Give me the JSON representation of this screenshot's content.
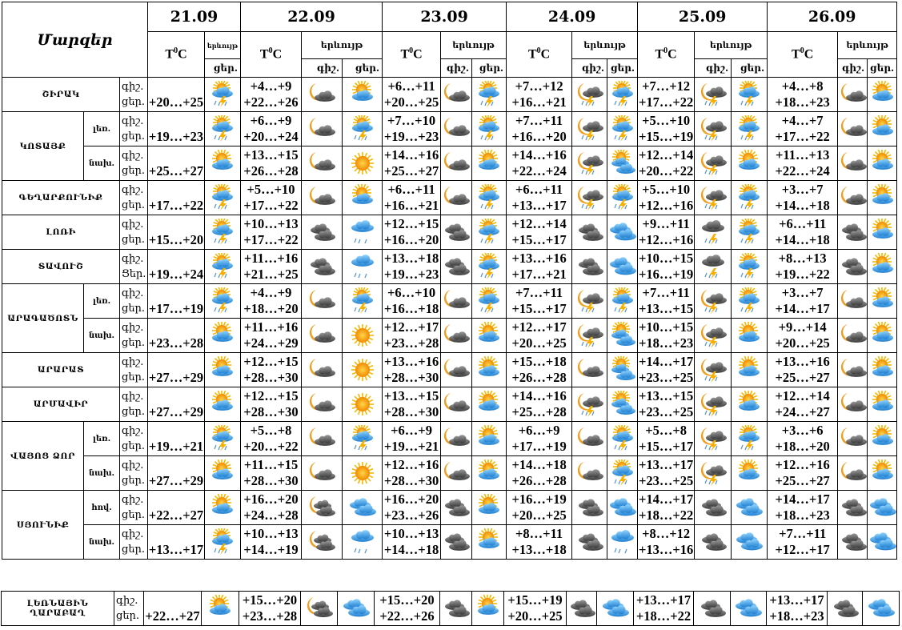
{
  "header": {
    "regions_label": "Մարզեր",
    "temp_symbol": "T",
    "temp_degree": "0",
    "temp_unit": "C",
    "phenomenon_label": "երևույթ",
    "night_label": "գիշ.",
    "day_label": "ցեր.",
    "dates": [
      "21.09",
      "22.09",
      "23.09",
      "24.09",
      "25.09",
      "26.09"
    ]
  },
  "regions": [
    {
      "name": "ՇԻՐԱԿ",
      "zones": [
        {
          "zone": "",
          "night_label": "գիշ.",
          "day_label": "ցեր.",
          "first": {
            "day": "+20…+25",
            "icon_day": "sun-storm"
          },
          "forecast": [
            {
              "night": "+4…+9",
              "day": "+22…+26",
              "icon_night": "moon-cloud",
              "icon_day": "sun-cloud"
            },
            {
              "night": "+6…+11",
              "day": "+20…+25",
              "icon_night": "moon-cloud",
              "icon_day": "sun-storm"
            },
            {
              "night": "+7…+12",
              "day": "+16…+21",
              "icon_night": "moon-storm",
              "icon_day": "sun-storm"
            },
            {
              "night": "+7…+12",
              "day": "+17…+22",
              "icon_night": "moon-storm",
              "icon_day": "sun-storm"
            },
            {
              "night": "+4…+8",
              "day": "+18…+23",
              "icon_night": "moon-cloud",
              "icon_day": "sun-cloud"
            }
          ]
        }
      ]
    },
    {
      "name": "ԿՈՏԱՅՔ",
      "zones": [
        {
          "zone": "լեռ.",
          "night_label": "գիշ.",
          "day_label": "ցեր.",
          "first": {
            "day": "+19…+23",
            "icon_day": "sun-storm"
          },
          "forecast": [
            {
              "night": "+6…+9",
              "day": "+20…+24",
              "icon_night": "moon-cloud",
              "icon_day": "sun-storm"
            },
            {
              "night": "+7…+10",
              "day": "+19…+23",
              "icon_night": "moon-cloud",
              "icon_day": "sun-storm"
            },
            {
              "night": "+7…+11",
              "day": "+16…+20",
              "icon_night": "moon-storm",
              "icon_day": "sun-storm"
            },
            {
              "night": "+5…+10",
              "day": "+15…+19",
              "icon_night": "moon-storm",
              "icon_day": "sun-storm"
            },
            {
              "night": "+4…+7",
              "day": "+17…+22",
              "icon_night": "moon-cloud",
              "icon_day": "sun-cloud"
            }
          ]
        },
        {
          "zone": "նախ.",
          "night_label": "գիշ.",
          "day_label": "ցեր.",
          "first": {
            "day": "+25…+27",
            "icon_day": "sun-cloud"
          },
          "forecast": [
            {
              "night": "+13…+15",
              "day": "+26…+28",
              "icon_night": "moon-cloud",
              "icon_day": "sun"
            },
            {
              "night": "+14…+16",
              "day": "+25…+27",
              "icon_night": "moon-cloud",
              "icon_day": "sun-cloud"
            },
            {
              "night": "+14…+16",
              "day": "+22…+24",
              "icon_night": "moon-storm",
              "icon_day": "sun-clouds"
            },
            {
              "night": "+12…+14",
              "day": "+20…+22",
              "icon_night": "moon-storm",
              "icon_day": "sun-cloud"
            },
            {
              "night": "+11…+13",
              "day": "+22…+24",
              "icon_night": "moon-cloud",
              "icon_day": "sun-cloud"
            }
          ]
        }
      ]
    },
    {
      "name": "ԳԵՂԱՐՔՈՒՆԻՔ",
      "zones": [
        {
          "zone": "",
          "night_label": "գիշ.",
          "day_label": "ցեր.",
          "first": {
            "day": "+17…+22",
            "icon_day": "sun-storm"
          },
          "forecast": [
            {
              "night": "+5…+10",
              "day": "+17…+22",
              "icon_night": "moon-cloud",
              "icon_day": "sun-cloud"
            },
            {
              "night": "+6…+11",
              "day": "+16…+21",
              "icon_night": "moon-cloud",
              "icon_day": "sun-storm"
            },
            {
              "night": "+6…+11",
              "day": "+13…+17",
              "icon_night": "moon-storm",
              "icon_day": "sun-storm"
            },
            {
              "night": "+5…+10",
              "day": "+12…+16",
              "icon_night": "moon-storm",
              "icon_day": "sun-storm"
            },
            {
              "night": "+3…+7",
              "day": "+14…+18",
              "icon_night": "moon-cloud",
              "icon_day": "sun-cloud"
            }
          ]
        }
      ]
    },
    {
      "name": "ԼՈՌԻ",
      "zones": [
        {
          "zone": "",
          "night_label": "գիշ.",
          "day_label": "ցեր.",
          "first": {
            "day": "+15…+20",
            "icon_day": "sun-storm"
          },
          "forecast": [
            {
              "night": "+10…+13",
              "day": "+17…+22",
              "icon_night": "clouds-dark",
              "icon_day": "rain"
            },
            {
              "night": "+12…+15",
              "day": "+16…+20",
              "icon_night": "clouds-dark",
              "icon_day": "sun-storm"
            },
            {
              "night": "+12…+14",
              "day": "+15…+17",
              "icon_night": "clouds-dark",
              "icon_day": "clouds-blue"
            },
            {
              "night": "+9…+11",
              "day": "+12…+16",
              "icon_night": "storm-dark",
              "icon_day": "sun-storm"
            },
            {
              "night": "+6…+11",
              "day": "+14…+18",
              "icon_night": "clouds-dark",
              "icon_day": "sun-cloud"
            }
          ]
        }
      ]
    },
    {
      "name": "ՏԱՎՈՒՇ",
      "zones": [
        {
          "zone": "",
          "night_label": "գիշ.",
          "day_label": "Ցեր.",
          "first": {
            "day": "+19…+24",
            "icon_day": "sun-storm"
          },
          "forecast": [
            {
              "night": "+11…+16",
              "day": "+21…+25",
              "icon_night": "clouds-dark",
              "icon_day": "rain"
            },
            {
              "night": "+13…+18",
              "day": "+19…+23",
              "icon_night": "clouds-dark",
              "icon_day": "sun-storm"
            },
            {
              "night": "+13…+16",
              "day": "+17…+21",
              "icon_night": "clouds-dark",
              "icon_day": "clouds-blue"
            },
            {
              "night": "+10…+15",
              "day": "+16…+19",
              "icon_night": "storm-dark",
              "icon_day": "sun-storm"
            },
            {
              "night": "+8…+13",
              "day": "+19…+22",
              "icon_night": "clouds-dark",
              "icon_day": "sun-cloud"
            }
          ]
        }
      ]
    },
    {
      "name": "ԱՐԱԳԱԾՈՏՆ",
      "zones": [
        {
          "zone": "լեռ.",
          "night_label": "գիշ.",
          "day_label": "ցեր.",
          "first": {
            "day": "+17…+19",
            "icon_day": "sun-storm"
          },
          "forecast": [
            {
              "night": "+4…+9",
              "day": "+18…+20",
              "icon_night": "moon-cloud",
              "icon_day": "sun-storm"
            },
            {
              "night": "+6…+10",
              "day": "+16…+18",
              "icon_night": "moon-cloud",
              "icon_day": "sun-storm"
            },
            {
              "night": "+7…+11",
              "day": "+15…+17",
              "icon_night": "moon-storm",
              "icon_day": "sun-storm"
            },
            {
              "night": "+7…+11",
              "day": "+13…+15",
              "icon_night": "moon-storm",
              "icon_day": "sun-storm"
            },
            {
              "night": "+3…+7",
              "day": "+14…+17",
              "icon_night": "moon-cloud",
              "icon_day": "sun-cloud"
            }
          ]
        },
        {
          "zone": "նախ.",
          "night_label": "գիշ.",
          "day_label": "ցեր.",
          "first": {
            "day": "+23…+28",
            "icon_day": "sun-cloud"
          },
          "forecast": [
            {
              "night": "+11…+16",
              "day": "+24…+29",
              "icon_night": "moon-cloud",
              "icon_day": "sun"
            },
            {
              "night": "+12…+17",
              "day": "+23…+28",
              "icon_night": "moon-cloud",
              "icon_day": "sun-cloud"
            },
            {
              "night": "+12…+17",
              "day": "+20…+25",
              "icon_night": "moon-storm",
              "icon_day": "sun-clouds"
            },
            {
              "night": "+10…+15",
              "day": "+18…+23",
              "icon_night": "moon-storm",
              "icon_day": "sun-cloud"
            },
            {
              "night": "+9…+14",
              "day": "+20…+25",
              "icon_night": "moon-cloud",
              "icon_day": "sun-cloud"
            }
          ]
        }
      ]
    },
    {
      "name": "ԱՐԱՐԱՏ",
      "zones": [
        {
          "zone": "",
          "night_label": "գիշ.",
          "day_label": "ցեր.",
          "first": {
            "day": "+27…+29",
            "icon_day": "sun-cloud"
          },
          "forecast": [
            {
              "night": "+12…+15",
              "day": "+28…+30",
              "icon_night": "moon-cloud",
              "icon_day": "sun"
            },
            {
              "night": "+13…+16",
              "day": "+28…+30",
              "icon_night": "moon-cloud",
              "icon_day": "sun-cloud"
            },
            {
              "night": "+15…+18",
              "day": "+26…+28",
              "icon_night": "moon-cloud",
              "icon_day": "sun-clouds"
            },
            {
              "night": "+14…+17",
              "day": "+23…+25",
              "icon_night": "moon-storm",
              "icon_day": "sun-cloud"
            },
            {
              "night": "+13…+16",
              "day": "+25…+27",
              "icon_night": "moon-cloud",
              "icon_day": "sun-cloud"
            }
          ]
        }
      ]
    },
    {
      "name": "ԱՐՄԱՎԻՐ",
      "zones": [
        {
          "zone": "",
          "night_label": "գիշ.",
          "day_label": "ցեր.",
          "first": {
            "day": "+27…+29",
            "icon_day": "sun-cloud"
          },
          "forecast": [
            {
              "night": "+12…+15",
              "day": "+28…+30",
              "icon_night": "moon-cloud",
              "icon_day": "sun"
            },
            {
              "night": "+13…+15",
              "day": "+28…+30",
              "icon_night": "moon-cloud",
              "icon_day": "sun-cloud"
            },
            {
              "night": "+14…+16",
              "day": "+25…+28",
              "icon_night": "moon-storm",
              "icon_day": "sun-clouds"
            },
            {
              "night": "+13…+15",
              "day": "+23…+25",
              "icon_night": "moon-storm",
              "icon_day": "sun-cloud"
            },
            {
              "night": "+12…+14",
              "day": "+24…+27",
              "icon_night": "moon-cloud",
              "icon_day": "sun-cloud"
            }
          ]
        }
      ]
    },
    {
      "name": "ՎԱՅՈՑ ՁՈՐ",
      "zones": [
        {
          "zone": "լեռ.",
          "night_label": "գիշ.",
          "day_label": "ցեր.",
          "first": {
            "day": "+19…+21",
            "icon_day": "sun-storm"
          },
          "forecast": [
            {
              "night": "+5…+8",
              "day": "+20…+22",
              "icon_night": "moon-cloud",
              "icon_day": "sun-storm"
            },
            {
              "night": "+6…+9",
              "day": "+19…+21",
              "icon_night": "moon-cloud",
              "icon_day": "sun-cloud"
            },
            {
              "night": "+6…+9",
              "day": "+17…+19",
              "icon_night": "moon-cloud",
              "icon_day": "sun-storm"
            },
            {
              "night": "+5…+8",
              "day": "+15…+17",
              "icon_night": "moon-storm",
              "icon_day": "sun-storm"
            },
            {
              "night": "+3…+6",
              "day": "+18…+20",
              "icon_night": "moon-cloud",
              "icon_day": "sun-cloud"
            }
          ]
        },
        {
          "zone": "նախ.",
          "night_label": "գիշ.",
          "day_label": "ցեր.",
          "first": {
            "day": "+27…+29",
            "icon_day": "sun-cloud"
          },
          "forecast": [
            {
              "night": "+11…+15",
              "day": "+28…+30",
              "icon_night": "moon-cloud",
              "icon_day": "sun"
            },
            {
              "night": "+12…+16",
              "day": "+28…+30",
              "icon_night": "moon-cloud",
              "icon_day": "sun-cloud"
            },
            {
              "night": "+14…+18",
              "day": "+26…+28",
              "icon_night": "moon-cloud",
              "icon_day": "sun-storm"
            },
            {
              "night": "+13…+17",
              "day": "+23…+25",
              "icon_night": "moon-storm",
              "icon_day": "sun-cloud"
            },
            {
              "night": "+12…+16",
              "day": "+25…+27",
              "icon_night": "moon-cloud",
              "icon_day": "sun-cloud"
            }
          ]
        }
      ]
    },
    {
      "name": "ՍՅՈՒՆԻՔ",
      "zones": [
        {
          "zone": "հով.",
          "night_label": "գիշ.",
          "day_label": "ցեր.",
          "first": {
            "day": "+22…+27",
            "icon_day": "sun-cloud"
          },
          "forecast": [
            {
              "night": "+16…+20",
              "day": "+24…+28",
              "icon_night": "moon-clouds",
              "icon_day": "clouds-blue"
            },
            {
              "night": "+16…+20",
              "day": "+23…+26",
              "icon_night": "clouds-dark",
              "icon_day": "sun-cloud"
            },
            {
              "night": "+16…+19",
              "day": "+20…+25",
              "icon_night": "clouds-dark",
              "icon_day": "clouds-blue"
            },
            {
              "night": "+14…+17",
              "day": "+18…+22",
              "icon_night": "clouds-dark",
              "icon_day": "clouds-blue"
            },
            {
              "night": "+14…+17",
              "day": "+18…+23",
              "icon_night": "clouds-dark",
              "icon_day": "clouds-blue"
            }
          ]
        },
        {
          "zone": "նախ.",
          "night_label": "գիշ.",
          "day_label": "ցեր.",
          "first": {
            "day": "+13…+17",
            "icon_day": "sun-storm"
          },
          "forecast": [
            {
              "night": "+10…+13",
              "day": "+14…+19",
              "icon_night": "moon-clouds",
              "icon_day": "rain"
            },
            {
              "night": "+10…+13",
              "day": "+14…+18",
              "icon_night": "clouds-dark",
              "icon_day": "sun-cloud"
            },
            {
              "night": "+8…+11",
              "day": "+13…+18",
              "icon_night": "clouds-dark",
              "icon_day": "rain"
            },
            {
              "night": "+8…+12",
              "day": "+13…+16",
              "icon_night": "clouds-dark",
              "icon_day": "clouds-blue"
            },
            {
              "night": "+7…+11",
              "day": "+12…+17",
              "icon_night": "clouds-dark",
              "icon_day": "clouds-blue"
            }
          ]
        }
      ]
    }
  ],
  "karabakh": {
    "name": "ԼԵՌՆԱՅԻՆ ՂԱՐԱԲԱՂ",
    "night_label": "գիշ.",
    "day_label": "ցեր.",
    "first": {
      "day": "+22…+27",
      "icon_day": "sun-cloud"
    },
    "forecast": [
      {
        "night": "+15…+20",
        "day": "+23…+28",
        "icon_night": "moon-clouds",
        "icon_day": "clouds-blue"
      },
      {
        "night": "+15…+20",
        "day": "+22…+26",
        "icon_night": "clouds-dark",
        "icon_day": "sun-cloud"
      },
      {
        "night": "+15…+19",
        "day": "+20…+25",
        "icon_night": "clouds-dark",
        "icon_day": "clouds-blue"
      },
      {
        "night": "+13…+17",
        "day": "+18…+22",
        "icon_night": "clouds-dark",
        "icon_day": "clouds-blue"
      },
      {
        "night": "+13…+17",
        "day": "+18…+23",
        "icon_night": "clouds-dark",
        "icon_day": "clouds-blue"
      }
    ]
  }
}
